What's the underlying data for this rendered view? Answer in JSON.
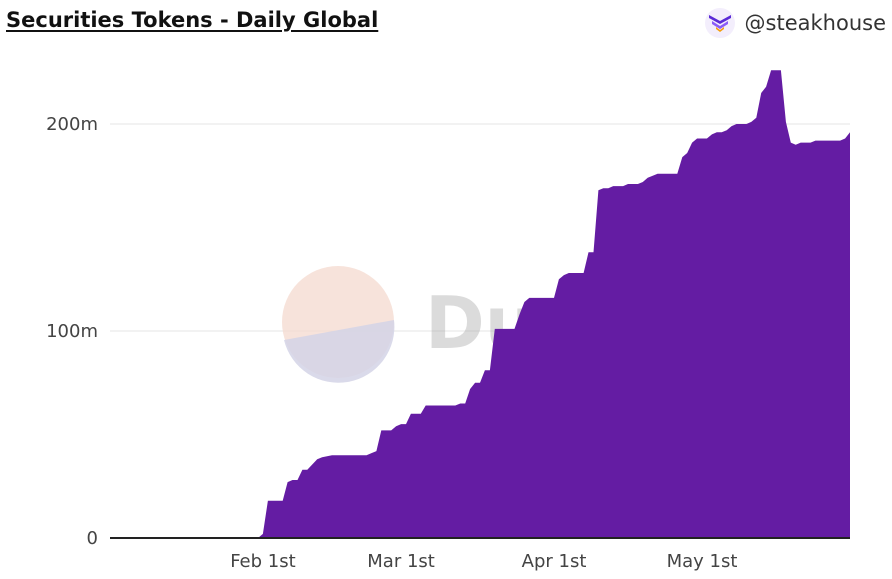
{
  "header": {
    "title": "Securities Tokens - Daily Global",
    "brand_handle": "@steakhouse"
  },
  "watermark": "Dune",
  "colors": {
    "area": "#641ca3",
    "grid": "#e6e6e6",
    "axis": "#222222"
  },
  "chart_data": {
    "type": "area",
    "title": "Securities Tokens - Daily Global",
    "xlabel": "",
    "ylabel": "",
    "ylim": [
      0,
      240
    ],
    "y_ticks": [
      {
        "value": 0,
        "label": "0"
      },
      {
        "value": 100,
        "label": "100m"
      },
      {
        "value": 200,
        "label": "200m"
      }
    ],
    "x_ticks": [
      {
        "value": 31,
        "label": "Feb 1st"
      },
      {
        "value": 59,
        "label": "Mar 1st"
      },
      {
        "value": 90,
        "label": "Apr 1st"
      },
      {
        "value": 120,
        "label": "May 1st"
      }
    ],
    "xlim": [
      0,
      150
    ],
    "grid": true,
    "series": [
      {
        "values_unit": "millions",
        "x": [
          0,
          30,
          31,
          32,
          33,
          35,
          36,
          37,
          38,
          39,
          40,
          42,
          43,
          45,
          46,
          47,
          48,
          49,
          50,
          52,
          53,
          54,
          55,
          56,
          57,
          58,
          59,
          60,
          61,
          62,
          63,
          64,
          65,
          66,
          67,
          68,
          69,
          70,
          71,
          72,
          73,
          74,
          75,
          76,
          77,
          78,
          79,
          80,
          81,
          82,
          83,
          84,
          85,
          86,
          87,
          88,
          89,
          90,
          91,
          92,
          93,
          94,
          95,
          96,
          97,
          98,
          99,
          100,
          101,
          102,
          103,
          104,
          105,
          106,
          107,
          108,
          109,
          110,
          111,
          112,
          113,
          114,
          115,
          116,
          117,
          118,
          119,
          120,
          121,
          122,
          123,
          124,
          125,
          126,
          127,
          128,
          129,
          130,
          131,
          132,
          133,
          134,
          135,
          136,
          137,
          138,
          139,
          140,
          141,
          142,
          143,
          144,
          145,
          146,
          147,
          148,
          149,
          150
        ],
        "y": [
          0,
          0,
          2,
          18,
          18,
          18,
          27,
          28,
          28,
          33,
          33,
          38,
          39,
          40,
          40,
          40,
          40,
          40,
          40,
          40,
          41,
          42,
          52,
          52,
          52,
          54,
          55,
          55,
          60,
          60,
          60,
          64,
          64,
          64,
          64,
          64,
          64,
          64,
          65,
          65,
          72,
          75,
          75,
          81,
          81,
          101,
          101,
          101,
          101,
          101,
          108,
          114,
          116,
          116,
          116,
          116,
          116,
          116,
          125,
          127,
          128,
          128,
          128,
          128,
          138,
          138,
          168,
          169,
          169,
          170,
          170,
          170,
          171,
          171,
          171,
          172,
          174,
          175,
          176,
          176,
          176,
          176,
          176,
          184,
          186,
          191,
          193,
          193,
          193,
          195,
          196,
          196,
          197,
          199,
          200,
          200,
          200,
          201,
          203,
          215,
          218,
          226,
          226,
          226,
          201,
          191,
          190,
          191,
          191,
          191,
          192,
          192,
          192,
          192,
          192,
          192,
          193,
          196
        ]
      }
    ]
  }
}
